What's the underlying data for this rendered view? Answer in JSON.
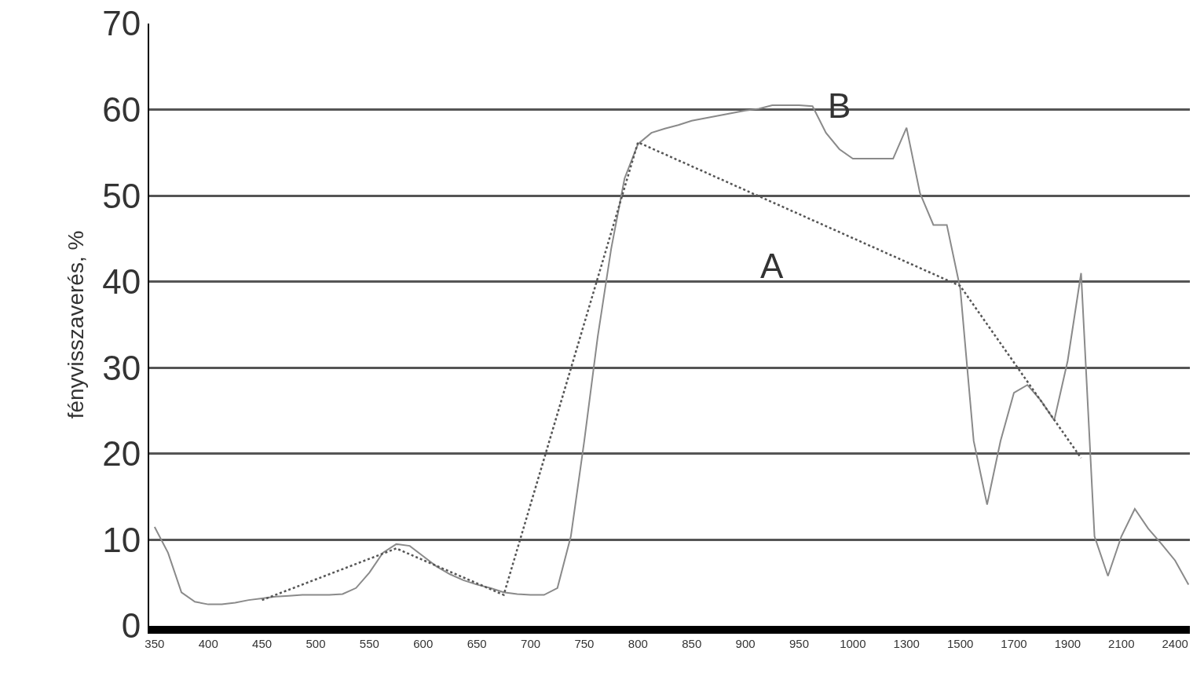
{
  "chart_data": {
    "type": "line",
    "ylabel": "fényvisszaverés, %",
    "categories": [
      "350",
      null,
      null,
      null,
      "400",
      null,
      null,
      null,
      "450",
      null,
      null,
      null,
      "500",
      null,
      null,
      null,
      "550",
      null,
      null,
      null,
      "600",
      null,
      null,
      null,
      "650",
      null,
      null,
      null,
      "700",
      null,
      null,
      null,
      "750",
      null,
      null,
      null,
      "800",
      null,
      null,
      null,
      "850",
      null,
      null,
      null,
      "900",
      null,
      null,
      null,
      "950",
      null,
      null,
      null,
      "1000",
      null,
      null,
      null,
      "1300",
      null,
      null,
      null,
      "1500",
      null,
      null,
      null,
      "1700",
      null,
      null,
      null,
      "1900",
      null,
      null,
      null,
      "2100",
      null,
      null,
      null,
      "2400",
      null
    ],
    "series": [
      {
        "name": "B",
        "color": "#8a8a8a",
        "line_style": "solid",
        "values": [
          11.5,
          8.5,
          3.9,
          2.8,
          2.5,
          2.5,
          2.7,
          3.0,
          3.2,
          3.4,
          3.5,
          3.6,
          3.6,
          3.6,
          3.7,
          4.4,
          6.2,
          8.5,
          9.5,
          9.3,
          8.1,
          6.9,
          6.0,
          5.3,
          4.8,
          4.4,
          3.9,
          3.7,
          3.6,
          3.6,
          4.4,
          10.4,
          21.5,
          33.6,
          43.8,
          52,
          56,
          57.3,
          57.8,
          58.2,
          58.7,
          59,
          59.3,
          59.6,
          59.9,
          60.1,
          60.5,
          60.5,
          60.5,
          60.4,
          57.3,
          55.4,
          54.3,
          54.3,
          54.3,
          54.3,
          57.9,
          50.3,
          46.6,
          46.6,
          39.2,
          21.5,
          14.1,
          21.5,
          27.1,
          28,
          26.2,
          23.9,
          30.8,
          41,
          10.4,
          5.8,
          10.4,
          13.6,
          11.3,
          9.5,
          7.6,
          4.8
        ]
      },
      {
        "name": "A",
        "color": "#555555",
        "line_style": "dotted",
        "values": [
          null,
          null,
          null,
          null,
          null,
          null,
          null,
          null,
          3.0,
          null,
          null,
          null,
          null,
          null,
          null,
          null,
          null,
          null,
          9.0,
          null,
          null,
          null,
          null,
          null,
          null,
          null,
          3.6,
          null,
          null,
          null,
          null,
          null,
          null,
          null,
          null,
          null,
          56.2,
          null,
          null,
          null,
          null,
          null,
          null,
          null,
          null,
          null,
          null,
          null,
          null,
          null,
          null,
          null,
          null,
          null,
          null,
          null,
          null,
          null,
          null,
          null,
          39.5,
          null,
          null,
          null,
          null,
          null,
          null,
          null,
          null,
          19.5,
          null,
          null,
          null,
          null,
          null,
          null,
          null,
          null
        ]
      }
    ],
    "ylim": [
      0,
      70
    ],
    "yticks": [
      0,
      10,
      20,
      30,
      40,
      50,
      60,
      70
    ],
    "grid": "y",
    "legend": false
  }
}
